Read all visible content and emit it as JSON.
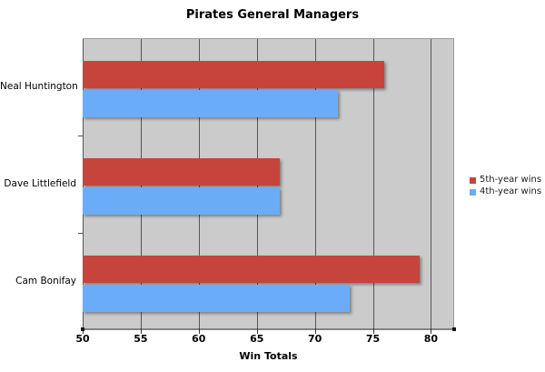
{
  "chart": {
    "title": "Pirates General Managers",
    "xlabel": "Win Totals"
  },
  "chart_data": {
    "type": "bar",
    "orientation": "horizontal",
    "title": "Pirates General Managers",
    "xlabel": "Win Totals",
    "ylabel": "",
    "categories": [
      "Neal Huntington",
      "Dave Littlefield",
      "Cam Bonifay"
    ],
    "series": [
      {
        "name": "5th-year wins",
        "color": "#c7443c",
        "values": [
          76,
          67,
          79
        ]
      },
      {
        "name": "4th-year wins",
        "color": "#6bacf8",
        "values": [
          72,
          67,
          73
        ]
      }
    ],
    "xlim": [
      50,
      82
    ],
    "xticks": [
      50,
      55,
      60,
      65,
      70,
      75,
      80
    ],
    "grid": true,
    "legend_position": "right",
    "plot_background": "#cbcbcb",
    "gridline_color": "#565656"
  }
}
